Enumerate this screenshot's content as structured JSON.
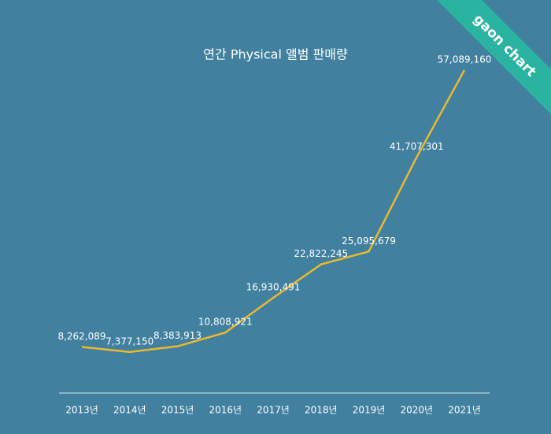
{
  "chart_data": {
    "type": "line",
    "title": "연간 Physical 앨범 판매량",
    "badge": "gaon chart",
    "categories": [
      "2013년",
      "2014년",
      "2015년",
      "2016년",
      "2017년",
      "2018년",
      "2019년",
      "2020년",
      "2021년"
    ],
    "series": [
      {
        "color": "#e8b931",
        "values": [
          8262089,
          7377150,
          8383913,
          10808921,
          16930491,
          22822245,
          25095679,
          41707301,
          57089160
        ],
        "value_labels": [
          "8,262,089",
          "7,377,150",
          "8,383,913",
          "10,808,921",
          "16,930,491",
          "22,822,245",
          "25,095,679",
          "41,707,301",
          "57,089,160"
        ]
      }
    ]
  }
}
